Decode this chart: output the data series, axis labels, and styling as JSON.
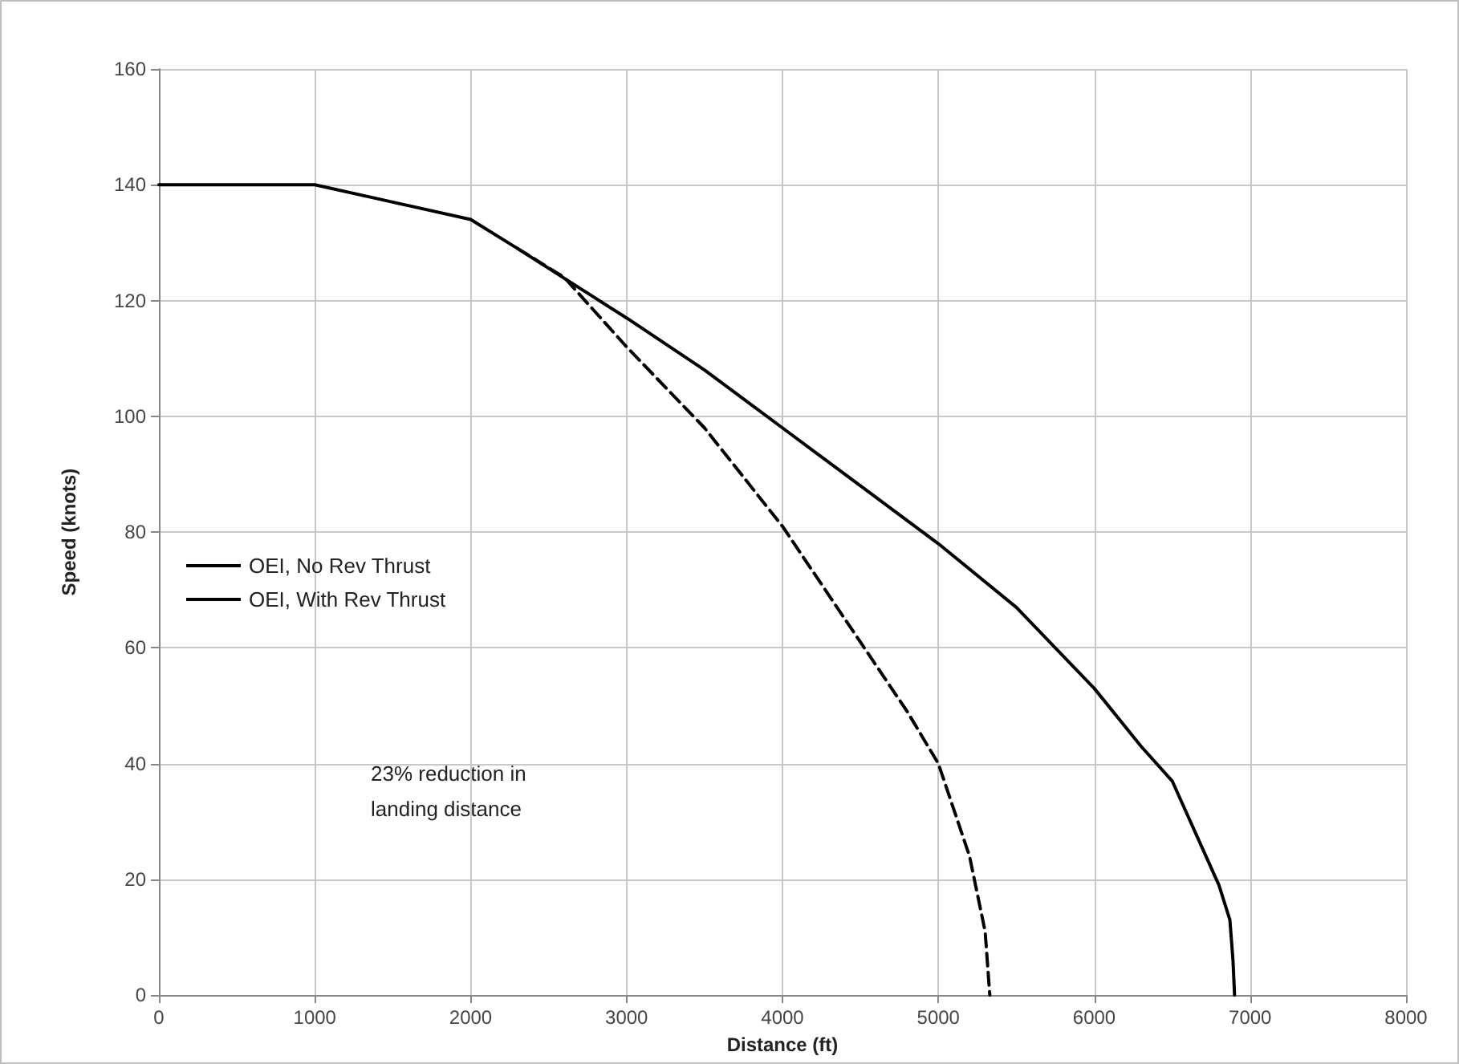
{
  "chart_data": {
    "type": "line",
    "xlabel": "Distance (ft)",
    "ylabel": "Speed (knots)",
    "xlim": [
      0,
      8000
    ],
    "xticks": [
      0,
      1000,
      2000,
      3000,
      4000,
      5000,
      6000,
      7000,
      8000
    ],
    "ylim": [
      0,
      160
    ],
    "yticks": [
      0,
      20,
      40,
      60,
      80,
      100,
      120,
      140,
      160
    ],
    "grid": true,
    "legend": "left",
    "marker": "none",
    "annotations": [
      "23% reduction in\nlanding distance"
    ],
    "series": [
      {
        "name": "OEI, No Rev Thrust",
        "color": "#000000",
        "line_style": "solid",
        "x": [
          0,
          1000,
          1500,
          2000,
          2300,
          3000,
          3500,
          4000,
          4500,
          5000,
          5500,
          6000,
          6300,
          6500,
          6700,
          6800,
          6870,
          6890,
          6900
        ],
        "values": [
          140,
          140,
          137,
          134,
          129,
          117,
          108,
          98,
          88,
          78,
          67,
          53,
          43,
          37,
          25,
          19,
          13,
          6,
          0
        ]
      },
      {
        "name": "OEI, With Rev Thrust",
        "color": "#000000",
        "line_style": "dashed",
        "x": [
          2300,
          2600,
          3000,
          3500,
          4000,
          4500,
          4800,
          5000,
          5200,
          5300,
          5330
        ],
        "values": [
          129,
          124,
          112,
          98,
          81,
          61,
          49,
          40,
          24,
          11,
          0
        ]
      }
    ]
  }
}
